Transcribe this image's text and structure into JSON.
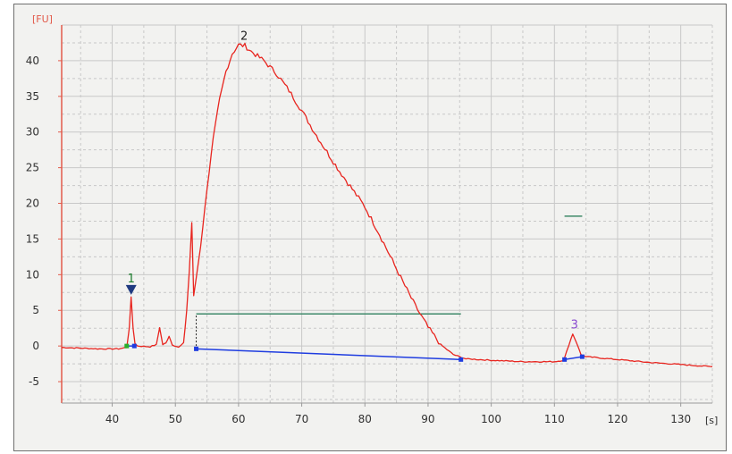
{
  "chart_data": {
    "type": "line",
    "ylabel": "[FU]",
    "xlabel": "[s]",
    "xlim": [
      32,
      135
    ],
    "ylim": [
      -8,
      45
    ],
    "grid": true,
    "x_ticks": [
      40,
      50,
      60,
      70,
      80,
      90,
      100,
      110,
      120,
      130
    ],
    "y_ticks": [
      -5,
      0,
      5,
      10,
      15,
      20,
      25,
      30,
      35,
      40
    ],
    "colors": {
      "trace": "#e8251f",
      "baseline": "#1f3de0",
      "region_bar": "#3f8a6a",
      "axis": "#e25a4a",
      "grid": "#c8c8c8",
      "plot_bg": "#f2f2f0",
      "peak_label_1": "#1a7a2a",
      "peak_label_2": "#222222",
      "peak_label_3": "#8a4ad0",
      "marker_triangle": "#1f3a80",
      "start_dot": "#2ab02a",
      "end_dot": "#1f3de0"
    },
    "series": [
      {
        "values": [
          [
            32,
            -0.2
          ],
          [
            38,
            -0.4
          ],
          [
            41,
            -0.4
          ],
          [
            42.3,
            -0.2
          ],
          [
            42.7,
            2.5
          ],
          [
            43.0,
            6.8
          ],
          [
            43.3,
            2.5
          ],
          [
            43.6,
            0.4
          ],
          [
            44,
            0.0
          ],
          [
            46,
            -0.1
          ],
          [
            47.0,
            0.2
          ],
          [
            47.5,
            2.6
          ],
          [
            48.0,
            0.2
          ],
          [
            48.5,
            0.4
          ],
          [
            49.0,
            1.4
          ],
          [
            49.5,
            0.2
          ],
          [
            50.5,
            -0.2
          ],
          [
            51.3,
            0.4
          ],
          [
            51.8,
            5.0
          ],
          [
            52.2,
            10.5
          ],
          [
            52.6,
            17.3
          ],
          [
            52.9,
            7.0
          ],
          [
            53.3,
            9.5
          ],
          [
            54,
            14
          ],
          [
            55,
            22
          ],
          [
            56,
            29
          ],
          [
            57,
            34.5
          ],
          [
            58,
            38.5
          ],
          [
            59,
            41
          ],
          [
            60,
            42.2
          ],
          [
            61,
            42.1
          ],
          [
            62,
            41.3
          ],
          [
            64,
            40
          ],
          [
            66,
            38.2
          ],
          [
            68,
            35.8
          ],
          [
            70,
            33
          ],
          [
            72,
            30
          ],
          [
            74,
            27.2
          ],
          [
            76,
            24.5
          ],
          [
            78,
            22
          ],
          [
            80,
            19.5
          ],
          [
            82,
            16.2
          ],
          [
            84,
            12.6
          ],
          [
            86,
            9.0
          ],
          [
            88,
            5.6
          ],
          [
            90,
            2.6
          ],
          [
            92,
            0.2
          ],
          [
            94,
            -1.2
          ],
          [
            96,
            -1.8
          ],
          [
            100,
            -2.0
          ],
          [
            105,
            -2.2
          ],
          [
            110,
            -2.2
          ],
          [
            111.5,
            -2.0
          ],
          [
            112.3,
            0.2
          ],
          [
            112.9,
            1.7
          ],
          [
            113.5,
            0.5
          ],
          [
            114.2,
            -1.2
          ],
          [
            115,
            -1.5
          ],
          [
            120,
            -1.9
          ],
          [
            125,
            -2.3
          ],
          [
            130,
            -2.6
          ],
          [
            135,
            -2.9
          ]
        ]
      }
    ],
    "baselines": [
      [
        [
          42.3,
          0.0
        ],
        [
          43.5,
          0.0
        ]
      ],
      [
        [
          53.3,
          -0.4
        ],
        [
          95.2,
          -1.9
        ]
      ],
      [
        [
          111.6,
          -1.9
        ],
        [
          114.4,
          -1.5
        ]
      ]
    ],
    "region_bars": [
      {
        "x": [
          53.3,
          95.2
        ],
        "y": 4.5
      },
      {
        "x": [
          111.6,
          114.4
        ],
        "y": 18.2
      }
    ],
    "region_start_line": {
      "x": 53.3,
      "y_from": 0,
      "y_to": 4.5
    },
    "peaks": [
      {
        "label": "1",
        "x": 43.0,
        "y": 6.8,
        "marker": "triangle"
      },
      {
        "label": "2",
        "x": 60.6,
        "y": 42.2
      },
      {
        "label": "3",
        "x": 112.9,
        "y": 1.7
      }
    ],
    "markers": [
      {
        "x": 42.3,
        "y": 0.0,
        "kind": "start"
      },
      {
        "x": 43.5,
        "y": 0.0,
        "kind": "end"
      },
      {
        "x": 53.3,
        "y": -0.4,
        "kind": "end"
      },
      {
        "x": 95.2,
        "y": -1.9,
        "kind": "end"
      },
      {
        "x": 111.6,
        "y": -1.9,
        "kind": "end"
      },
      {
        "x": 114.4,
        "y": -1.5,
        "kind": "end"
      }
    ]
  }
}
